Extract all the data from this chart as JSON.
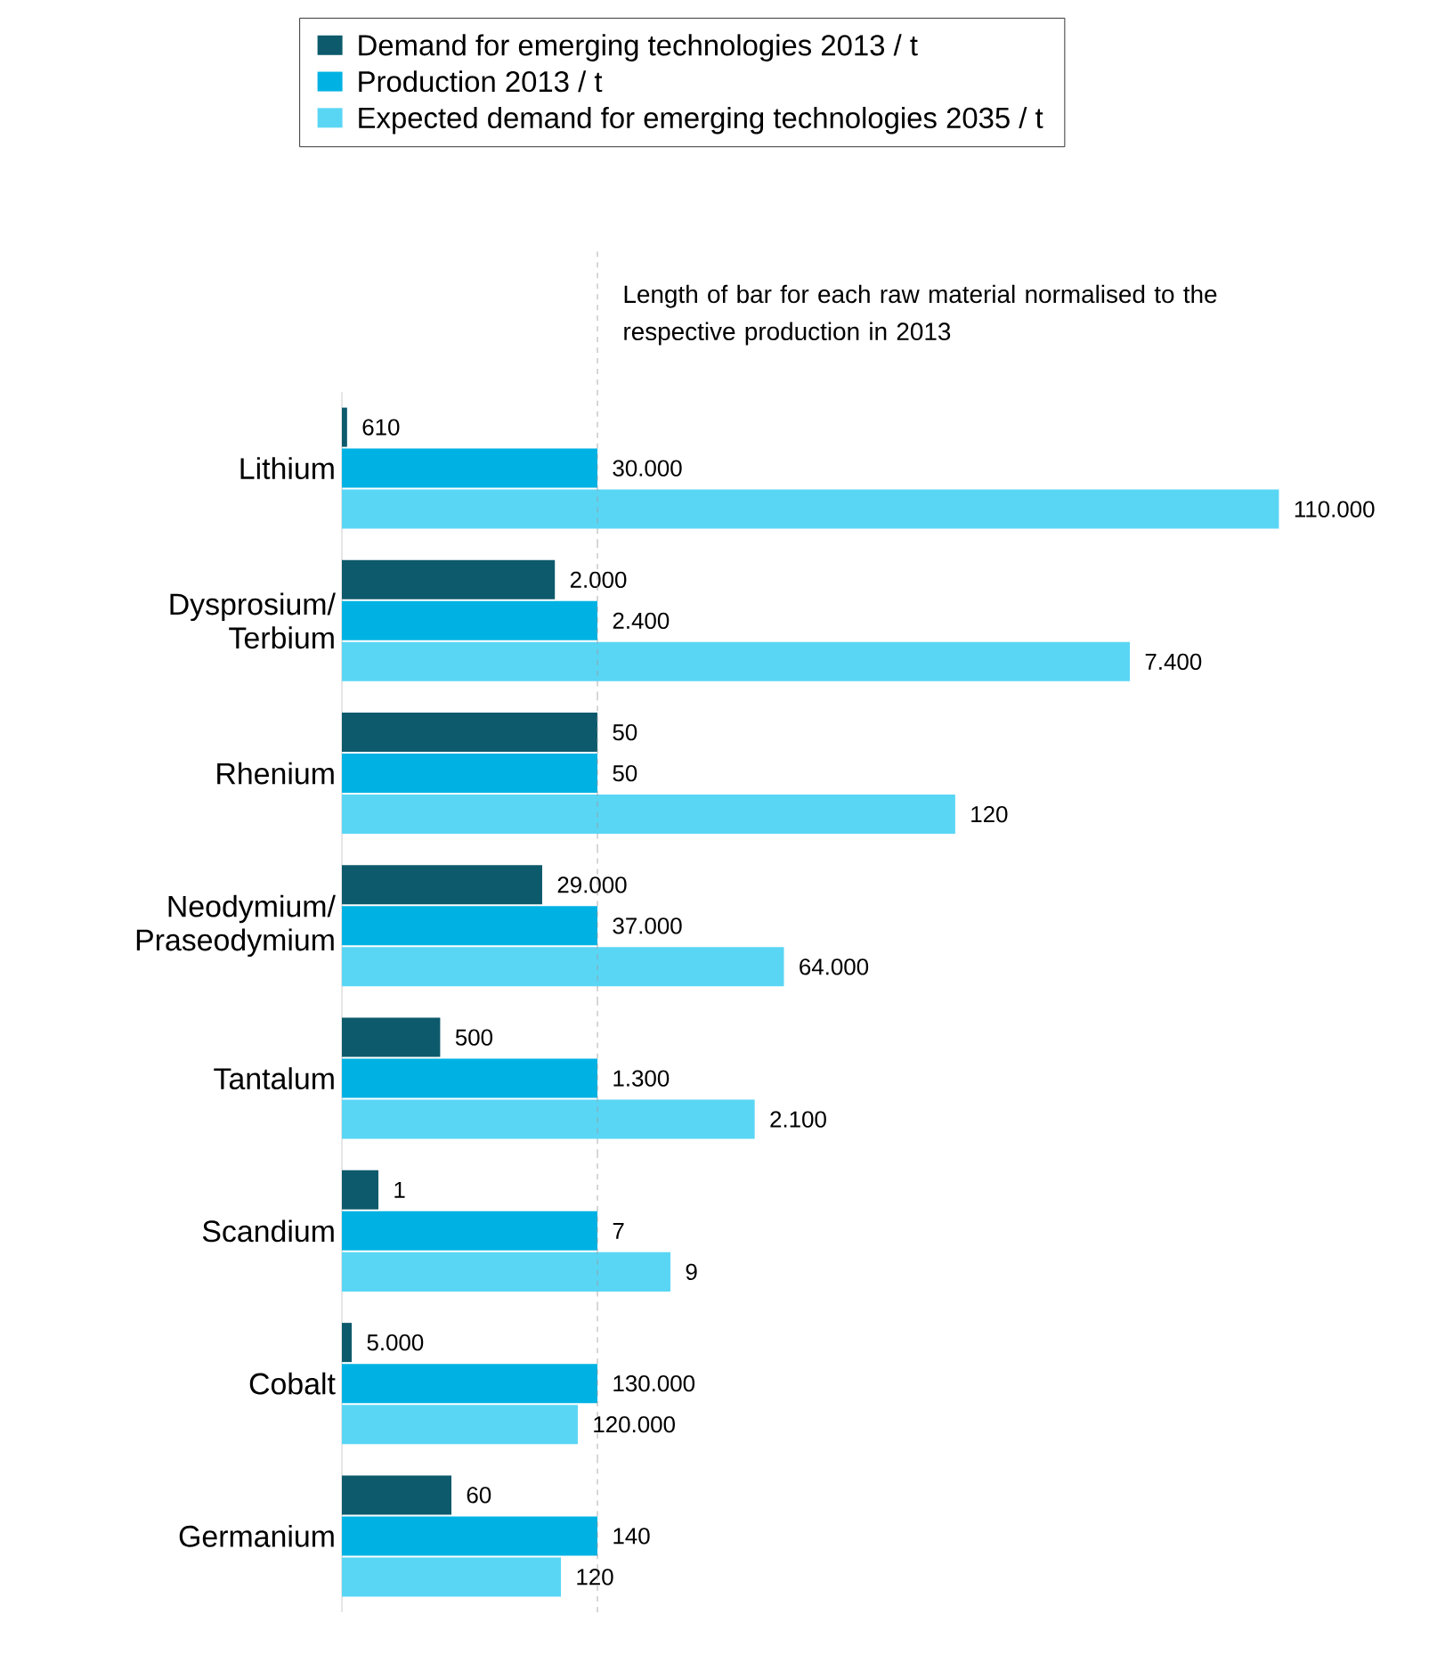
{
  "chart_data": [
    {
      "type": "bar",
      "orientation": "horizontal",
      "legend": "top",
      "categories": [
        "Lithium"
      ],
      "series": [
        {
          "name": "Demand for emerging technologies 2013  /  t",
          "color": "#0d5a6c",
          "values": [
            610
          ],
          "value_labels": [
            "610"
          ]
        },
        {
          "name": "Production 2013  /  t",
          "color": "#00b2e3",
          "values": [
            30000
          ],
          "value_labels": [
            "30.000"
          ]
        },
        {
          "name": "Expected demand for emerging technologies 2035  /  t",
          "color": "#5ad6f5",
          "values": [
            110000
          ],
          "value_labels": [
            "110.000"
          ]
        }
      ],
      "ref_lines": [
        {
          "axis": "x",
          "value": 30000,
          "label": "Length of bar for each raw material normalised to the respective production in 2013",
          "color": "#999999",
          "line_style": "dashed"
        }
      ]
    },
    {
      "type": "bar",
      "orientation": "horizontal",
      "categories": [
        "Dysprosium/ Terbium"
      ],
      "series": [
        {
          "color": "#0d5a6c",
          "values": [
            2000
          ],
          "value_labels": [
            "2.000"
          ]
        },
        {
          "color": "#00b2e3",
          "values": [
            2400
          ],
          "value_labels": [
            "2.400"
          ]
        },
        {
          "color": "#5ad6f5",
          "values": [
            7400
          ],
          "value_labels": [
            "7.400"
          ]
        }
      ],
      "ref_lines": [
        {
          "axis": "x",
          "value": 2400,
          "color": "#999999",
          "line_style": "dashed"
        }
      ]
    },
    {
      "type": "bar",
      "orientation": "horizontal",
      "categories": [
        "Rhenium"
      ],
      "series": [
        {
          "color": "#0d5a6c",
          "values": [
            50
          ],
          "value_labels": [
            "50"
          ]
        },
        {
          "color": "#00b2e3",
          "values": [
            50
          ],
          "value_labels": [
            "50"
          ]
        },
        {
          "color": "#5ad6f5",
          "values": [
            120
          ],
          "value_labels": [
            "120"
          ]
        }
      ],
      "ref_lines": [
        {
          "axis": "x",
          "value": 50,
          "color": "#999999",
          "line_style": "dashed"
        }
      ]
    },
    {
      "type": "bar",
      "orientation": "horizontal",
      "categories": [
        "Neodymium/ Praseodymium"
      ],
      "series": [
        {
          "color": "#0d5a6c",
          "values": [
            29000
          ],
          "value_labels": [
            "29.000"
          ]
        },
        {
          "color": "#00b2e3",
          "values": [
            37000
          ],
          "value_labels": [
            "37.000"
          ]
        },
        {
          "color": "#5ad6f5",
          "values": [
            64000
          ],
          "value_labels": [
            "64.000"
          ]
        }
      ],
      "ref_lines": [
        {
          "axis": "x",
          "value": 37000,
          "color": "#999999",
          "line_style": "dashed"
        }
      ]
    },
    {
      "type": "bar",
      "orientation": "horizontal",
      "categories": [
        "Tantalum"
      ],
      "series": [
        {
          "color": "#0d5a6c",
          "values": [
            500
          ],
          "value_labels": [
            "500"
          ]
        },
        {
          "color": "#00b2e3",
          "values": [
            1300
          ],
          "value_labels": [
            "1.300"
          ]
        },
        {
          "color": "#5ad6f5",
          "values": [
            2100
          ],
          "value_labels": [
            "2.100"
          ]
        }
      ],
      "ref_lines": [
        {
          "axis": "x",
          "value": 1300,
          "color": "#999999",
          "line_style": "dashed"
        }
      ]
    },
    {
      "type": "bar",
      "orientation": "horizontal",
      "categories": [
        "Scandium"
      ],
      "series": [
        {
          "color": "#0d5a6c",
          "values": [
            1
          ],
          "value_labels": [
            "1"
          ]
        },
        {
          "color": "#00b2e3",
          "values": [
            7
          ],
          "value_labels": [
            "7"
          ]
        },
        {
          "color": "#5ad6f5",
          "values": [
            9
          ],
          "value_labels": [
            "9"
          ]
        }
      ],
      "ref_lines": [
        {
          "axis": "x",
          "value": 7,
          "color": "#999999",
          "line_style": "dashed"
        }
      ]
    },
    {
      "type": "bar",
      "orientation": "horizontal",
      "categories": [
        "Cobalt"
      ],
      "series": [
        {
          "color": "#0d5a6c",
          "values": [
            5000
          ],
          "value_labels": [
            "5.000"
          ]
        },
        {
          "color": "#00b2e3",
          "values": [
            130000
          ],
          "value_labels": [
            "130.000"
          ]
        },
        {
          "color": "#5ad6f5",
          "values": [
            120000
          ],
          "value_labels": [
            "120.000"
          ]
        }
      ],
      "ref_lines": [
        {
          "axis": "x",
          "value": 130000,
          "color": "#999999",
          "line_style": "dashed"
        }
      ]
    },
    {
      "type": "bar",
      "orientation": "horizontal",
      "categories": [
        "Germanium"
      ],
      "series": [
        {
          "color": "#0d5a6c",
          "values": [
            60
          ],
          "value_labels": [
            "60"
          ]
        },
        {
          "color": "#00b2e3",
          "values": [
            140
          ],
          "value_labels": [
            "140"
          ]
        },
        {
          "color": "#5ad6f5",
          "values": [
            120
          ],
          "value_labels": [
            "120"
          ]
        }
      ],
      "ref_lines": [
        {
          "axis": "x",
          "value": 140,
          "color": "#999999",
          "line_style": "dashed"
        }
      ]
    }
  ]
}
